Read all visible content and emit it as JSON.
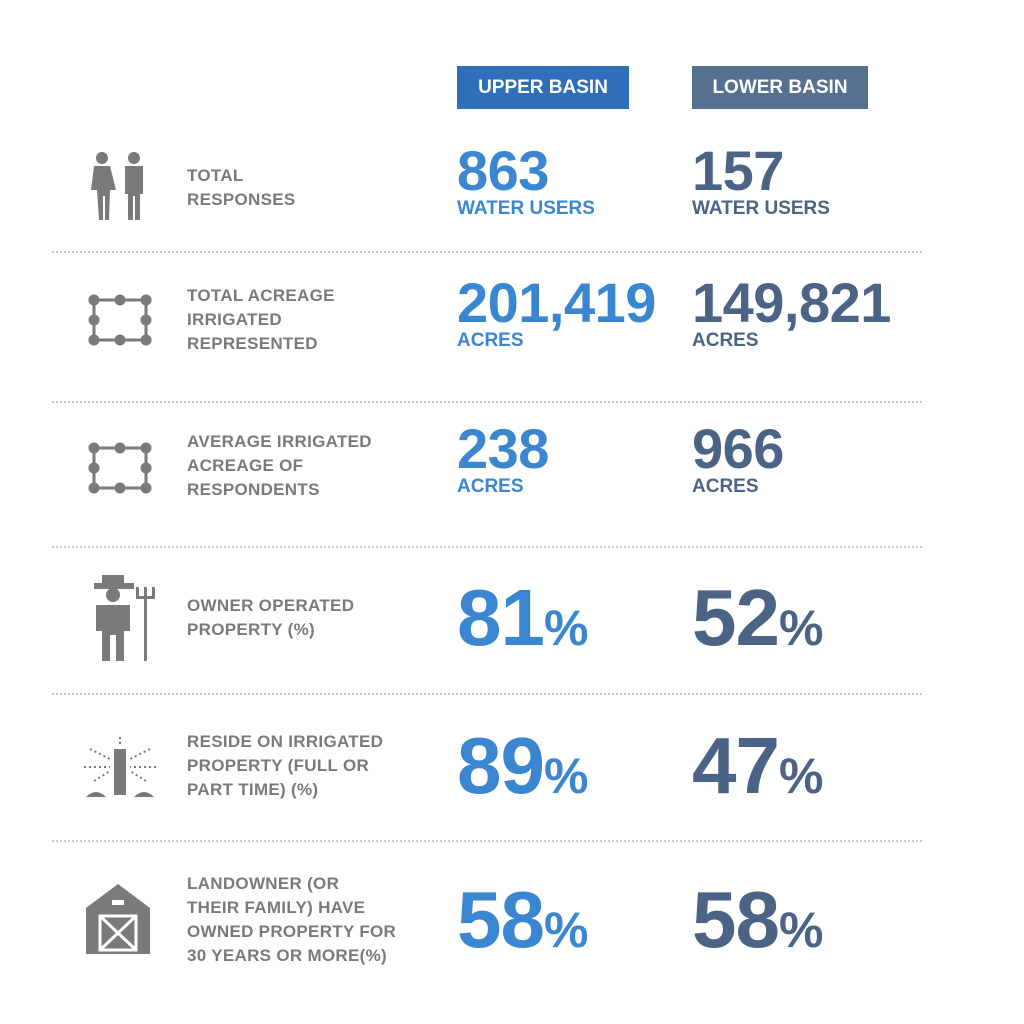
{
  "header": {
    "columns": [
      "UPPER BASIN",
      "LOWER BASIN"
    ]
  },
  "rows": [
    {
      "label": [
        "TOTAL",
        "RESPONSES"
      ],
      "upper": {
        "value": "863",
        "unit": "WATER USERS"
      },
      "lower": {
        "value": "157",
        "unit": "WATER USERS"
      }
    },
    {
      "label": [
        "TOTAL ACREAGE",
        "IRRIGATED",
        "REPRESENTED"
      ],
      "upper": {
        "value": "201,419",
        "unit": "ACRES"
      },
      "lower": {
        "value": "149,821",
        "unit": "ACRES"
      }
    },
    {
      "label": [
        "AVERAGE IRRIGATED",
        "ACREAGE OF",
        "RESPONDENTS"
      ],
      "upper": {
        "value": "238",
        "unit": "ACRES"
      },
      "lower": {
        "value": "966",
        "unit": "ACRES"
      }
    },
    {
      "label": [
        "OWNER OPERATED",
        "PROPERTY (%)"
      ],
      "upper": {
        "value": "81",
        "unit": "%"
      },
      "lower": {
        "value": "52",
        "unit": "%"
      }
    },
    {
      "label": [
        "RESIDE ON IRRIGATED",
        "PROPERTY (FULL OR",
        "PART TIME) (%)"
      ],
      "upper": {
        "value": "89",
        "unit": "%"
      },
      "lower": {
        "value": "47",
        "unit": "%"
      }
    },
    {
      "label": [
        "LANDOWNER (OR",
        "THEIR FAMILY) HAVE",
        "OWNED PROPERTY FOR",
        "30 YEARS OR MORE(%)"
      ],
      "upper": {
        "value": "58",
        "unit": "%"
      },
      "lower": {
        "value": "58",
        "unit": "%"
      }
    }
  ]
}
